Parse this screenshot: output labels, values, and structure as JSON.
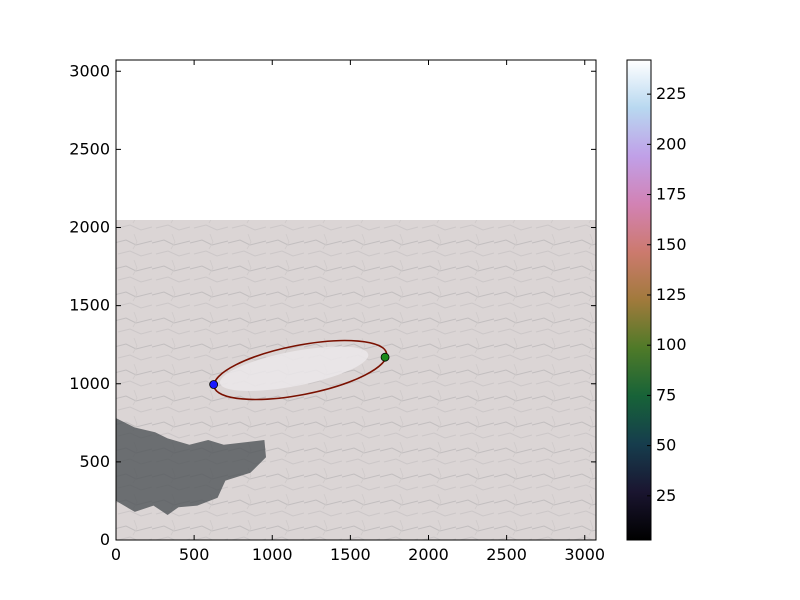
{
  "chart_data": {
    "type": "image",
    "title": "",
    "xlabel": "",
    "ylabel": "",
    "xlim": [
      0,
      3072
    ],
    "ylim": [
      0,
      3072
    ],
    "xticks": [
      0,
      500,
      1000,
      1500,
      2000,
      2500,
      3000
    ],
    "yticks": [
      0,
      500,
      1000,
      1500,
      2000,
      2500,
      3000
    ],
    "image_extent": {
      "x": [
        0,
        3072
      ],
      "y": [
        0,
        2048
      ]
    },
    "ellipse": {
      "center": [
        1180,
        1088
      ],
      "semi_major": 562,
      "semi_minor": 158,
      "angle_deg": 11,
      "color": "#7a1000"
    },
    "markers": [
      {
        "name": "start",
        "x": 625,
        "y": 995,
        "color": "#1a1aff"
      },
      {
        "name": "end",
        "x": 1722,
        "y": 1170,
        "color": "#1a8a1a"
      }
    ],
    "colorbar": {
      "colormap": "cubehelix",
      "range": [
        3,
        242
      ],
      "ticks": [
        25,
        50,
        75,
        100,
        125,
        150,
        175,
        200,
        225
      ]
    }
  }
}
